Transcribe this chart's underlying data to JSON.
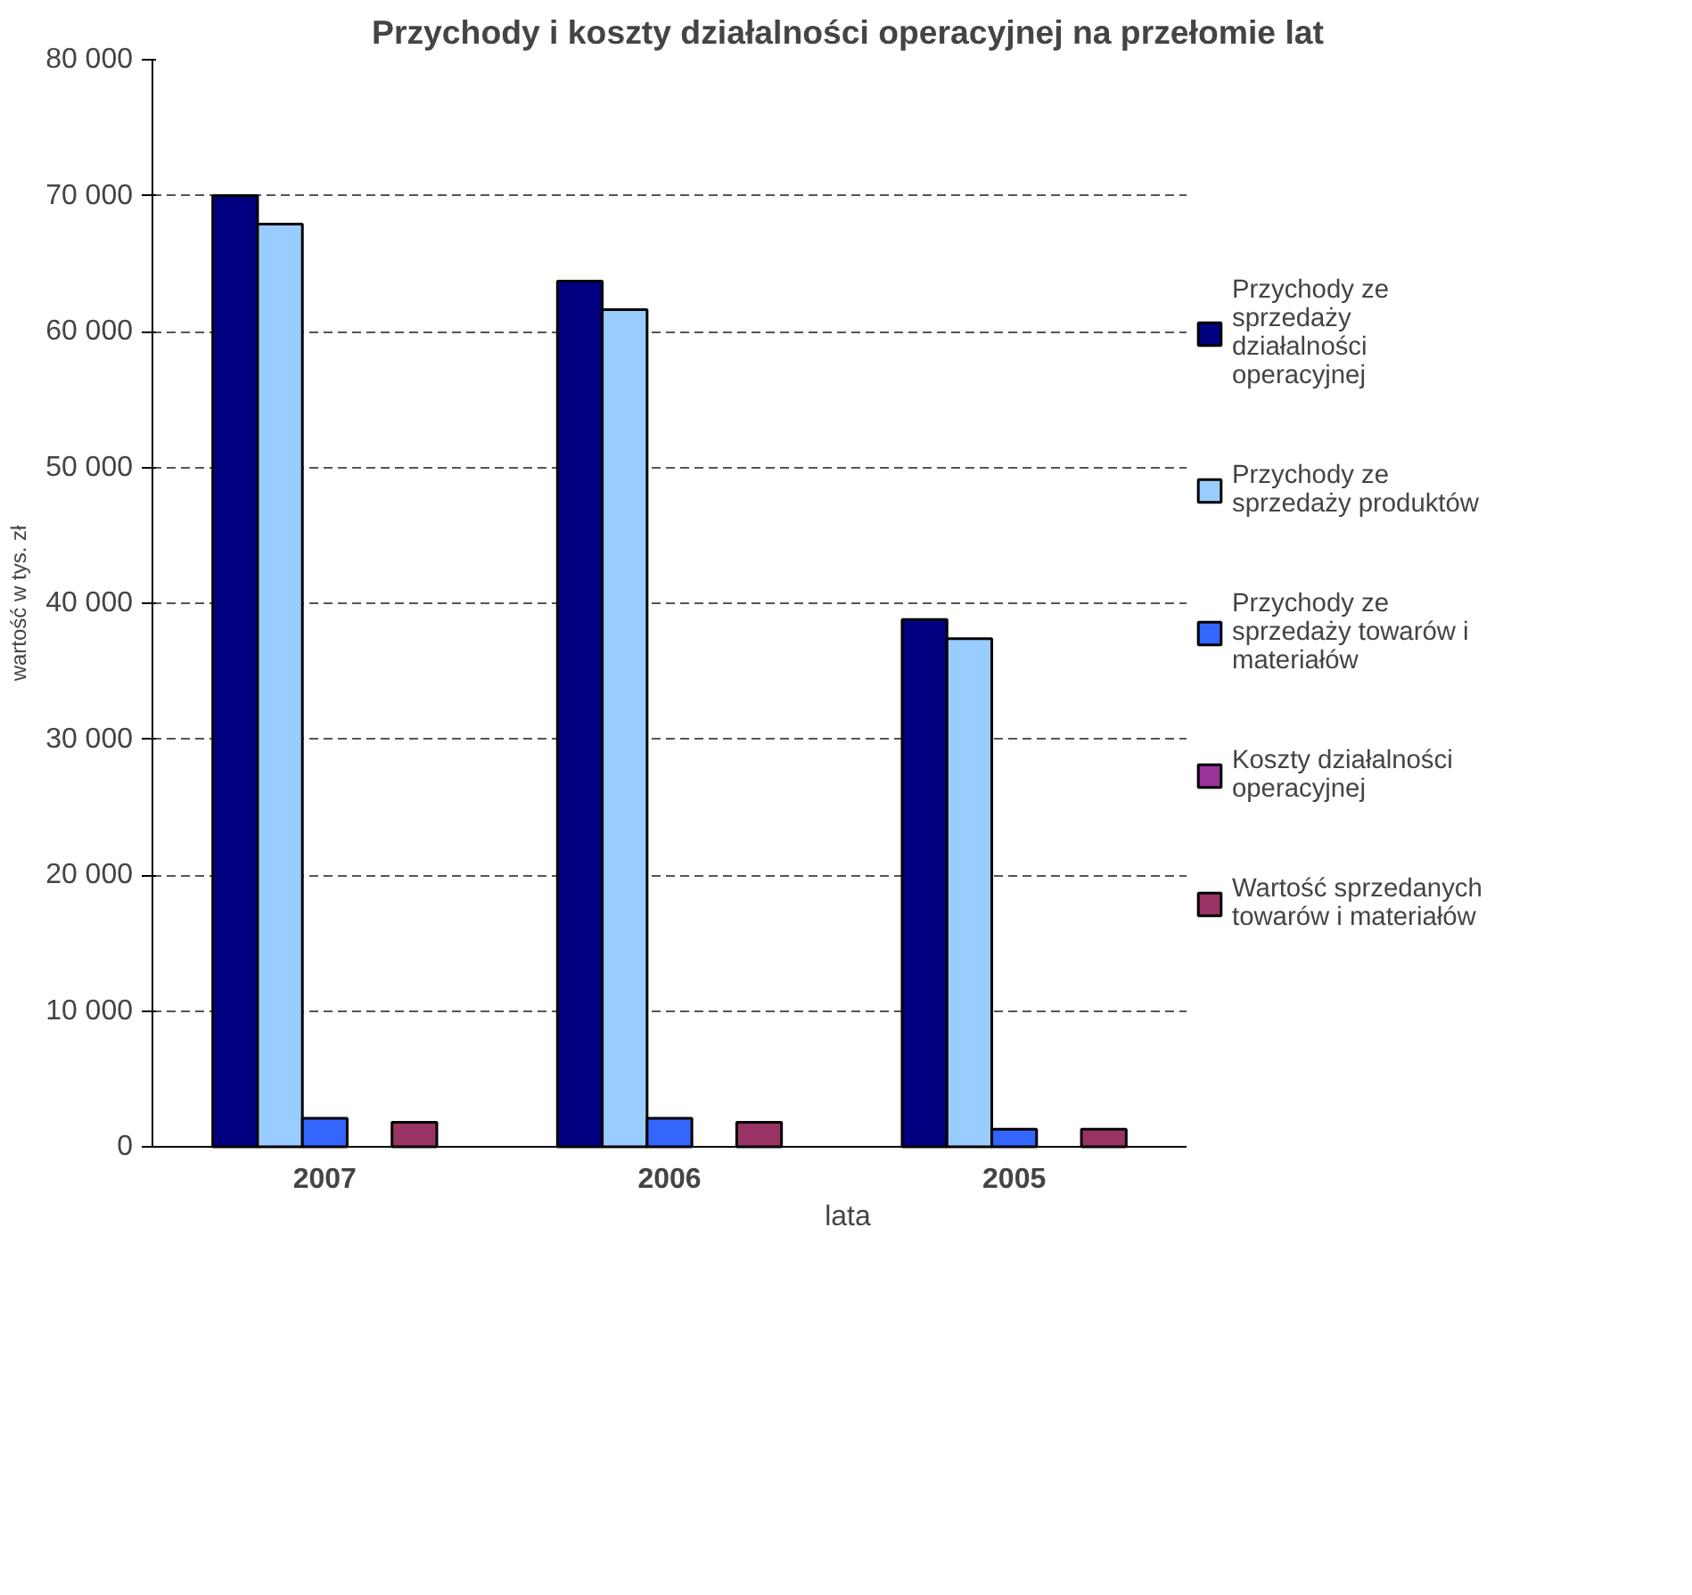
{
  "chart_data": {
    "type": "bar",
    "title": "Przychody i koszty działalności operacyjnej na przełomie lat",
    "xlabel": "lata",
    "ylabel": "wartość w tys. zł",
    "categories": [
      "2007",
      "2006",
      "2005"
    ],
    "series": [
      {
        "name": "Przychody ze sprzedaży działalności operacyjnej",
        "color": "#000080",
        "values": [
          70000,
          63700,
          38800
        ]
      },
      {
        "name": "Przychody ze sprzedaży produktów",
        "color": "#99ccff",
        "values": [
          67900,
          61600,
          37400
        ]
      },
      {
        "name": "Przychody ze sprzedaży towarów i materiałów",
        "color": "#3366ff",
        "values": [
          2100,
          2100,
          1300
        ]
      },
      {
        "name": "Koszty działalności operacyjnej",
        "color": "#993399",
        "values": [
          null,
          null,
          null
        ]
      },
      {
        "name": "Wartość sprzedanych towarów i materiałów",
        "color": "#993366",
        "values": [
          1800,
          1800,
          1300
        ]
      }
    ],
    "ylim": [
      0,
      80000
    ],
    "yticks": [
      {
        "value": 0,
        "label": "0"
      },
      {
        "value": 10000,
        "label": "10 000"
      },
      {
        "value": 20000,
        "label": "20 000"
      },
      {
        "value": 30000,
        "label": "30 000"
      },
      {
        "value": 40000,
        "label": "40 000"
      },
      {
        "value": 50000,
        "label": "50 000"
      },
      {
        "value": 60000,
        "label": "60 000"
      },
      {
        "value": 70000,
        "label": "70 000"
      },
      {
        "value": 80000,
        "label": "80 000"
      }
    ],
    "grid": "y",
    "legend": "right"
  }
}
